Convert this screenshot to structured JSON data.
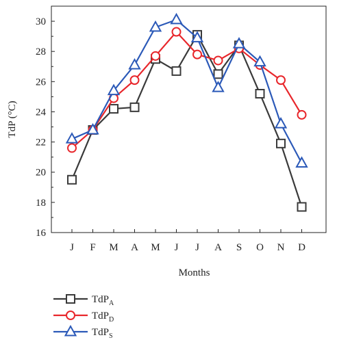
{
  "chart_data": {
    "type": "line",
    "categories": [
      "J",
      "F",
      "M",
      "A",
      "M",
      "J",
      "J",
      "A",
      "S",
      "O",
      "N",
      "D"
    ],
    "xlabel": "Months",
    "ylabel": "TdP (°C)",
    "ylim": [
      16,
      31
    ],
    "yticks": [
      16,
      18,
      20,
      22,
      24,
      26,
      28,
      30
    ],
    "grid": false,
    "legend_position": "bottom-left",
    "series": [
      {
        "name": "TdP",
        "name_subscript": "A",
        "color": "#3a3a3a",
        "marker": "square",
        "values": [
          19.5,
          22.8,
          24.2,
          24.3,
          27.5,
          26.7,
          29.1,
          26.5,
          28.4,
          25.2,
          21.9,
          17.7
        ]
      },
      {
        "name": "TdP",
        "name_subscript": "D",
        "color": "#e8262b",
        "marker": "circle",
        "values": [
          21.6,
          22.8,
          24.9,
          26.1,
          27.7,
          29.3,
          27.8,
          27.4,
          28.2,
          27.1,
          26.1,
          23.8
        ]
      },
      {
        "name": "TdP",
        "name_subscript": "S",
        "color": "#2b59b8",
        "marker": "triangle",
        "values": [
          22.2,
          22.8,
          25.4,
          27.1,
          29.6,
          30.1,
          28.9,
          25.6,
          28.5,
          27.3,
          23.2,
          20.6
        ]
      }
    ]
  }
}
